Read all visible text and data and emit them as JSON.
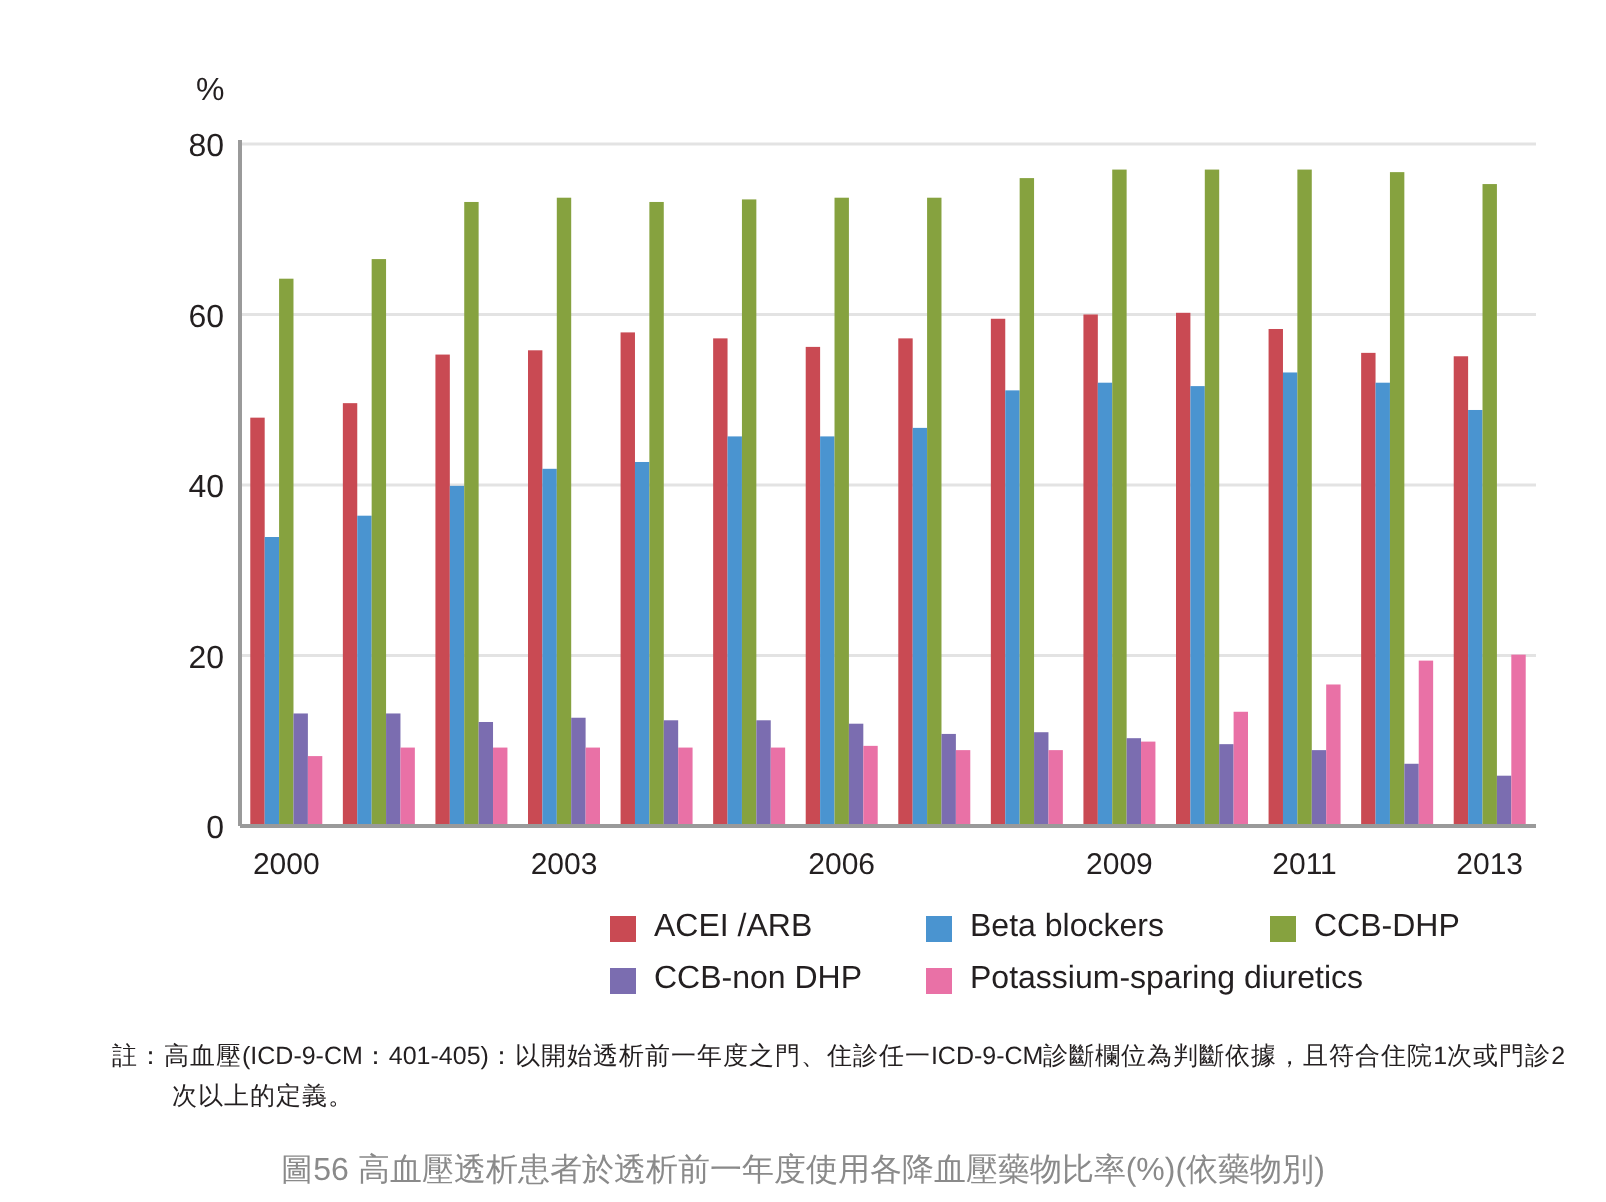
{
  "chart_data": {
    "type": "bar",
    "title": "圖56 高血壓透析患者於透析前一年度使用各降血壓藥物比率(%)(依藥物別)",
    "ylabel": "%",
    "annotations": [
      "註：高血壓(ICD-9-CM：401-405)：以開始透析前一年度之門、住診任一ICD-9-CM診斷欄位為判斷依據，且符合住院1次或門診2次以上的定義。"
    ],
    "categories": [
      "2000",
      null,
      null,
      "2003",
      null,
      null,
      "2006",
      null,
      null,
      "2009",
      null,
      "2011",
      null,
      "2013"
    ],
    "series": [
      {
        "name": "ACEI /ARB",
        "color": "#c94a53",
        "values": [
          47.9,
          49.6,
          55.3,
          55.8,
          57.9,
          57.2,
          56.2,
          57.2,
          59.5,
          60.0,
          60.2,
          58.3,
          55.5,
          55.1
        ]
      },
      {
        "name": "Beta blockers",
        "color": "#4a94d0",
        "values": [
          33.9,
          36.4,
          39.9,
          41.9,
          42.7,
          45.7,
          45.7,
          46.7,
          51.1,
          52.0,
          51.6,
          53.2,
          52.0,
          48.8
        ]
      },
      {
        "name": "CCB-DHP",
        "color": "#86a23f",
        "values": [
          64.2,
          66.5,
          73.2,
          73.7,
          73.2,
          73.5,
          73.7,
          73.7,
          76.0,
          77.0,
          77.0,
          77.0,
          76.7,
          75.3
        ]
      },
      {
        "name": "CCB-non DHP",
        "color": "#7b6db0",
        "values": [
          13.2,
          13.2,
          12.2,
          12.7,
          12.4,
          12.4,
          12.0,
          10.8,
          11.0,
          10.3,
          9.6,
          8.9,
          7.3,
          5.9
        ]
      },
      {
        "name": "Potassium-sparing diuretics",
        "color": "#e971a6",
        "values": [
          8.2,
          9.2,
          9.2,
          9.2,
          9.2,
          9.2,
          9.4,
          8.9,
          8.9,
          9.9,
          13.4,
          16.6,
          19.4,
          20.1
        ]
      }
    ],
    "ylim": [
      0,
      80
    ],
    "yticks": [
      0,
      20,
      40,
      60,
      80
    ],
    "grid": "y",
    "legend": "bottom"
  }
}
